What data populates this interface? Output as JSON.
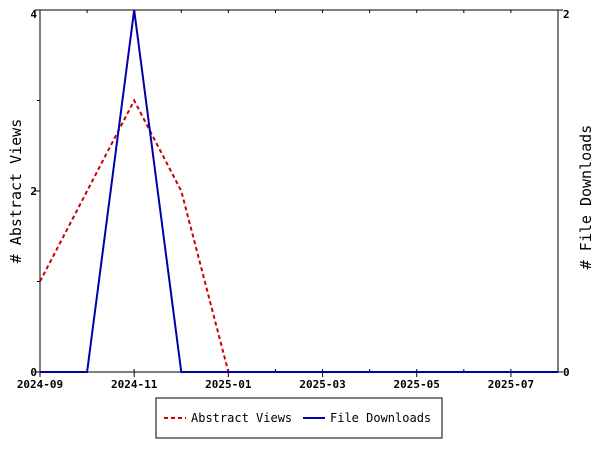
{
  "chart_data": {
    "type": "line",
    "title": "",
    "x_label": "",
    "y_left_label": "# Abstract Views",
    "y_right_label": "# File Downloads",
    "x_ticks": [
      "2024-09",
      "2024-11",
      "2025-01",
      "2025-03",
      "2025-05",
      "2025-07"
    ],
    "y_left_ticks": [
      "0",
      "2",
      "4"
    ],
    "y_right_ticks": [
      "0",
      "2"
    ],
    "y_left_range": [
      0,
      4
    ],
    "y_right_range": [
      0,
      2
    ],
    "x_months": [
      "2024-09",
      "2024-10",
      "2024-11",
      "2024-12",
      "2025-01",
      "2025-02",
      "2025-03",
      "2025-04",
      "2025-05",
      "2025-06",
      "2025-07",
      "2025-08"
    ],
    "legend_position": "bottom-center",
    "series": [
      {
        "name": "Abstract Views",
        "axis": "left",
        "color": "#cc0000",
        "style": "dashed",
        "values": [
          1,
          2,
          3,
          2,
          0,
          0,
          0,
          0,
          0,
          0,
          0,
          0
        ]
      },
      {
        "name": "File Downloads",
        "axis": "right",
        "color": "#0000aa",
        "style": "solid",
        "values": [
          0,
          0,
          2,
          0,
          0,
          0,
          0,
          0,
          0,
          0,
          0,
          0
        ]
      }
    ]
  }
}
